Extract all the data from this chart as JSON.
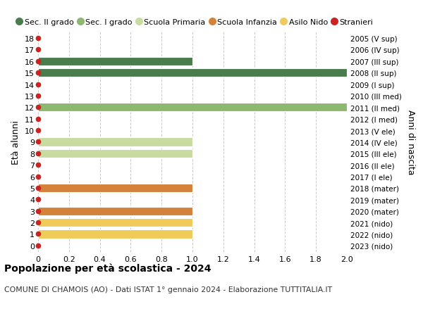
{
  "ages": [
    0,
    1,
    2,
    3,
    4,
    5,
    6,
    7,
    8,
    9,
    10,
    11,
    12,
    13,
    14,
    15,
    16,
    17,
    18
  ],
  "right_labels": [
    "2023 (nido)",
    "2022 (nido)",
    "2021 (nido)",
    "2020 (mater)",
    "2019 (mater)",
    "2018 (mater)",
    "2017 (I ele)",
    "2016 (II ele)",
    "2015 (III ele)",
    "2014 (IV ele)",
    "2013 (V ele)",
    "2012 (I med)",
    "2011 (II med)",
    "2010 (III med)",
    "2009 (I sup)",
    "2008 (II sup)",
    "2007 (III sup)",
    "2006 (IV sup)",
    "2005 (V sup)"
  ],
  "bars": [
    {
      "age": 1,
      "value": 1.0,
      "color": "#f0cb5a"
    },
    {
      "age": 2,
      "value": 1.0,
      "color": "#f0cb5a"
    },
    {
      "age": 3,
      "value": 1.0,
      "color": "#d4813a"
    },
    {
      "age": 5,
      "value": 1.0,
      "color": "#d4813a"
    },
    {
      "age": 8,
      "value": 1.0,
      "color": "#c8dba0"
    },
    {
      "age": 9,
      "value": 1.0,
      "color": "#c8dba0"
    },
    {
      "age": 12,
      "value": 2.0,
      "color": "#8db870"
    },
    {
      "age": 15,
      "value": 2.0,
      "color": "#4a7c4e"
    },
    {
      "age": 16,
      "value": 1.0,
      "color": "#4a7c4e"
    }
  ],
  "stranieri_ages": [
    0,
    1,
    2,
    3,
    4,
    5,
    6,
    7,
    8,
    9,
    10,
    11,
    12,
    13,
    14,
    15,
    16,
    17,
    18
  ],
  "dot_color": "#cc2222",
  "xlim": [
    0,
    2.0
  ],
  "xticks": [
    0,
    0.2,
    0.4,
    0.6,
    0.8,
    1.0,
    1.2,
    1.4,
    1.6,
    1.8,
    2.0
  ],
  "xtick_labels": [
    "0",
    "0.2",
    "0.4",
    "0.6",
    "0.8",
    "1.0",
    "1.2",
    "1.4",
    "1.6",
    "1.8",
    "2.0"
  ],
  "ylabel": "Età alunni",
  "right_ylabel": "Anni di nascita",
  "title": "Popolazione per età scolastica - 2024",
  "subtitle": "COMUNE DI CHAMOIS (AO) - Dati ISTAT 1° gennaio 2024 - Elaborazione TUTTITALIA.IT",
  "legend": [
    {
      "label": "Sec. II grado",
      "color": "#4a7c4e",
      "type": "circle"
    },
    {
      "label": "Sec. I grado",
      "color": "#8db870",
      "type": "circle"
    },
    {
      "label": "Scuola Primaria",
      "color": "#c8dba0",
      "type": "circle"
    },
    {
      "label": "Scuola Infanzia",
      "color": "#d4813a",
      "type": "circle"
    },
    {
      "label": "Asilo Nido",
      "color": "#f0cb5a",
      "type": "circle"
    },
    {
      "label": "Stranieri",
      "color": "#cc2222",
      "type": "circle"
    }
  ],
  "bg_color": "#ffffff",
  "grid_color": "#cccccc",
  "bar_height": 0.75
}
